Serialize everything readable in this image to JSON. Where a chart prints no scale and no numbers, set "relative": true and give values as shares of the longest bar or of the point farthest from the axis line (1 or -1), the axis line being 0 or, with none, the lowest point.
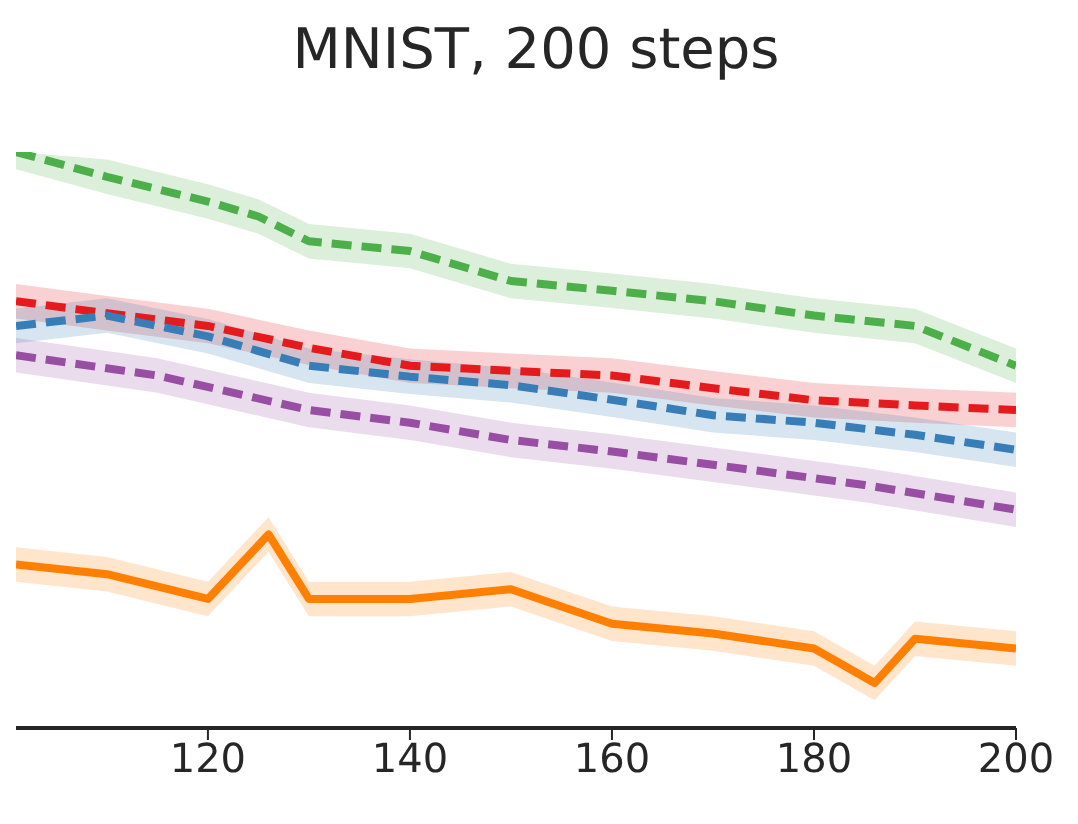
{
  "chart_data": {
    "type": "line",
    "title": "MNIST, 200 steps",
    "relative": true,
    "tick_labels": "x",
    "grid": false,
    "legend": false,
    "marker": "none",
    "xlim": [
      101,
      200
    ],
    "xticks": [
      120,
      140,
      160,
      180,
      200
    ],
    "series": [
      {
        "color": "#4daf4a",
        "line_style": "dashed",
        "x": [
          101,
          110,
          120,
          125,
          130,
          140,
          150,
          160,
          170,
          180,
          190,
          200
        ],
        "values": [
          1.0,
          0.957,
          0.914,
          0.888,
          0.845,
          0.828,
          0.776,
          0.759,
          0.741,
          0.716,
          0.698,
          0.629
        ],
        "lower": [
          0.97,
          0.927,
          0.884,
          0.858,
          0.815,
          0.798,
          0.746,
          0.729,
          0.711,
          0.686,
          0.668,
          0.599
        ],
        "upper": [
          1.0,
          0.987,
          0.944,
          0.918,
          0.875,
          0.858,
          0.806,
          0.789,
          0.771,
          0.746,
          0.728,
          0.659
        ]
      },
      {
        "color": "#e41a1c",
        "line_style": "dashed",
        "x": [
          101,
          110,
          120,
          130,
          140,
          150,
          160,
          170,
          180,
          190,
          200
        ],
        "values": [
          0.741,
          0.72,
          0.698,
          0.66,
          0.629,
          0.62,
          0.612,
          0.59,
          0.569,
          0.56,
          0.552
        ],
        "lower": [
          0.711,
          0.69,
          0.668,
          0.63,
          0.599,
          0.59,
          0.582,
          0.56,
          0.539,
          0.53,
          0.522
        ],
        "upper": [
          0.771,
          0.75,
          0.728,
          0.69,
          0.659,
          0.65,
          0.642,
          0.62,
          0.599,
          0.59,
          0.582
        ]
      },
      {
        "color": "#377eb8",
        "line_style": "dashed",
        "x": [
          101,
          110,
          120,
          130,
          140,
          150,
          160,
          170,
          180,
          190,
          200
        ],
        "values": [
          0.698,
          0.716,
          0.68,
          0.629,
          0.61,
          0.595,
          0.57,
          0.543,
          0.53,
          0.509,
          0.483
        ],
        "lower": [
          0.668,
          0.686,
          0.65,
          0.599,
          0.58,
          0.565,
          0.54,
          0.513,
          0.5,
          0.479,
          0.453
        ],
        "upper": [
          0.728,
          0.746,
          0.71,
          0.659,
          0.64,
          0.625,
          0.6,
          0.573,
          0.56,
          0.539,
          0.513
        ]
      },
      {
        "color": "#984ea3",
        "line_style": "dashed",
        "x": [
          101,
          115,
          130,
          140,
          150,
          160,
          170,
          185,
          200
        ],
        "values": [
          0.647,
          0.612,
          0.552,
          0.53,
          0.5,
          0.48,
          0.457,
          0.422,
          0.379
        ],
        "lower": [
          0.617,
          0.582,
          0.522,
          0.5,
          0.47,
          0.45,
          0.427,
          0.392,
          0.349
        ],
        "upper": [
          0.677,
          0.642,
          0.582,
          0.56,
          0.53,
          0.51,
          0.487,
          0.452,
          0.409
        ]
      },
      {
        "color": "#ff7f00",
        "line_style": "solid",
        "x": [
          101,
          110,
          120,
          126,
          130,
          140,
          150,
          160,
          170,
          180,
          186,
          190,
          200
        ],
        "values": [
          0.284,
          0.267,
          0.224,
          0.336,
          0.224,
          0.224,
          0.241,
          0.181,
          0.164,
          0.138,
          0.078,
          0.155,
          0.138
        ],
        "lower": [
          0.254,
          0.237,
          0.194,
          0.306,
          0.194,
          0.194,
          0.211,
          0.151,
          0.134,
          0.108,
          0.048,
          0.125,
          0.108
        ],
        "upper": [
          0.314,
          0.297,
          0.254,
          0.366,
          0.254,
          0.254,
          0.271,
          0.211,
          0.194,
          0.168,
          0.108,
          0.185,
          0.168
        ]
      }
    ]
  }
}
